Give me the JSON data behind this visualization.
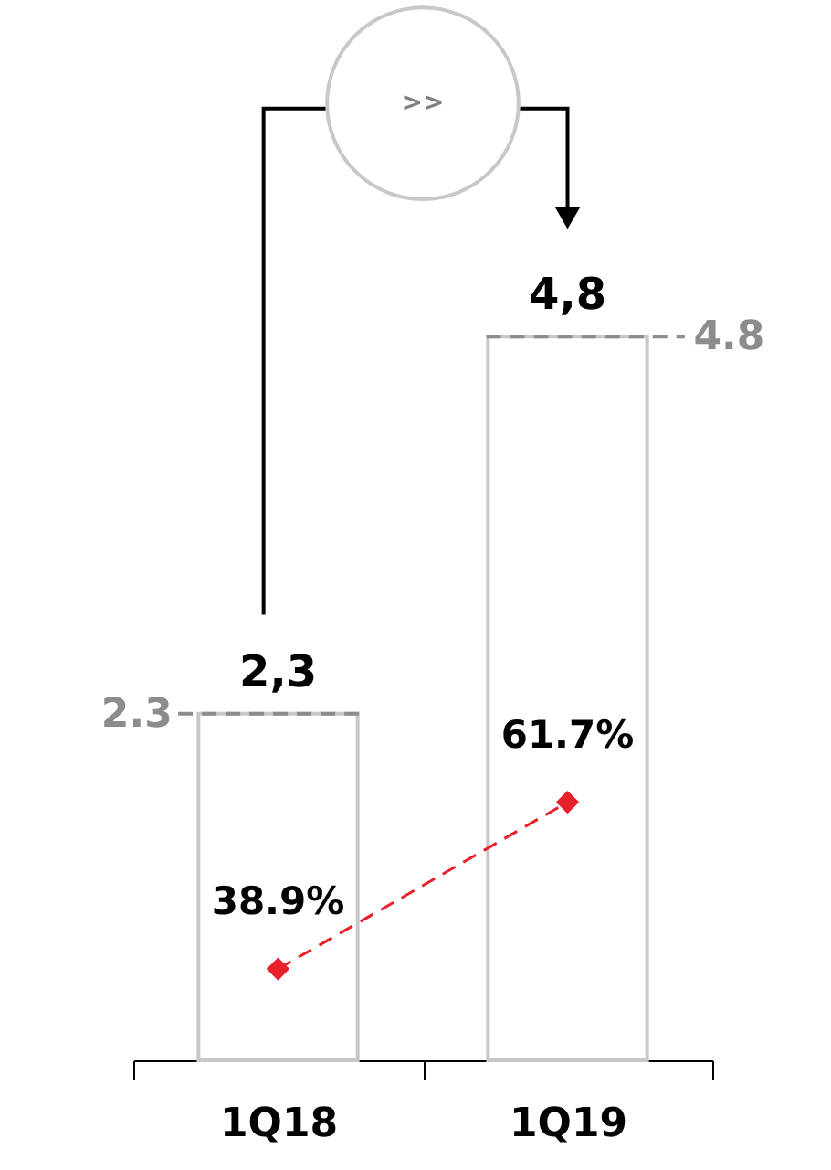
{
  "chart_data": {
    "type": "bar",
    "categories": [
      "1Q18",
      "1Q19"
    ],
    "series": [
      {
        "color": "#c8c8c8",
        "values": [
          2.3,
          4.8
        ],
        "value_labels": [
          "2,3",
          "4,8"
        ]
      },
      {
        "type": "line",
        "axis": "y2",
        "color": "#e8202a",
        "marker": "diamond",
        "line_style": "dashed",
        "values": [
          38.9,
          61.7
        ],
        "value_labels": [
          "38.9%",
          "61.7%"
        ]
      }
    ],
    "tick_labels": "x",
    "grid": false,
    "ref_lines": [
      {
        "axis": "y",
        "value": 2.3,
        "label": "2.3",
        "color": "#8c8c8c",
        "line_style": "dashed"
      },
      {
        "axis": "y",
        "value": 4.8,
        "label": "4.8",
        "color": "#8c8c8c",
        "line_style": "dashed"
      }
    ],
    "annotations": [
      ">>"
    ]
  }
}
